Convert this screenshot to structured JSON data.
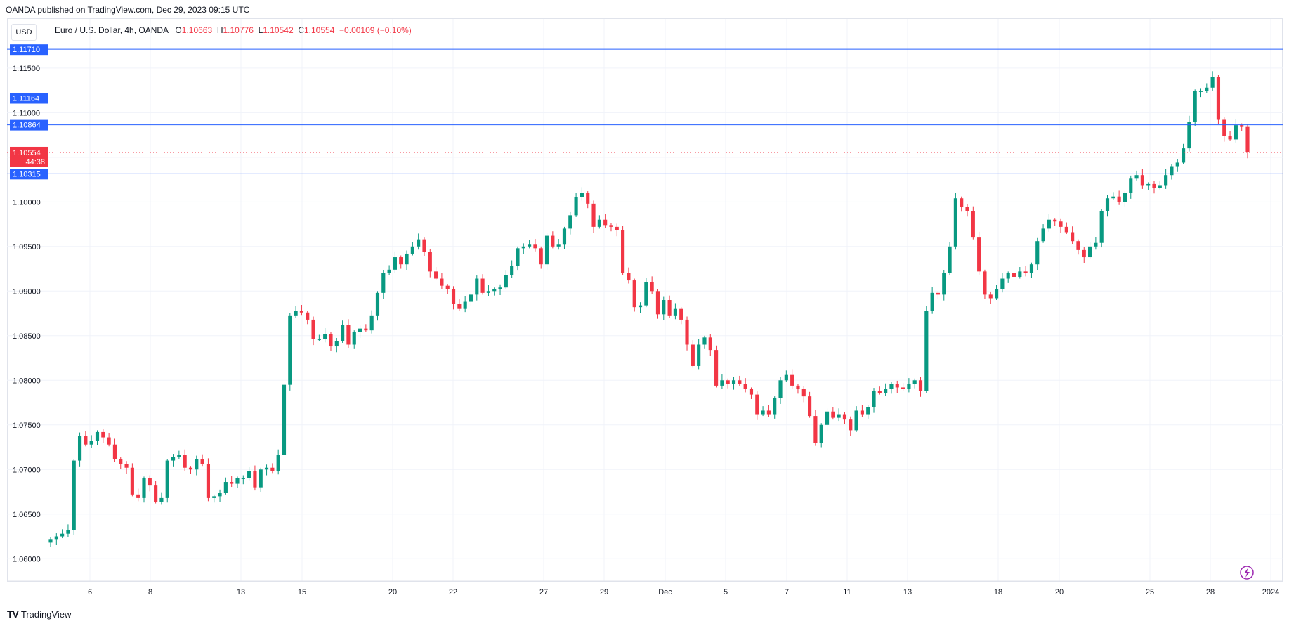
{
  "publisher": "OANDA published on TradingView.com, Dec 29, 2023 09:15 UTC",
  "currency_button": "USD",
  "legend": {
    "title": "Euro / U.S. Dollar, 4h, OANDA",
    "o_label": "O",
    "o": "1.10663",
    "h_label": "H",
    "h": "1.10776",
    "l_label": "L",
    "l": "1.10542",
    "c_label": "C",
    "c": "1.10554",
    "change": "−0.00109 (−0.10%)"
  },
  "footer": {
    "logo_text": "TV",
    "brand": "TradingView"
  },
  "colors": {
    "up": "#089981",
    "down": "#f23645",
    "level": "#2962ff",
    "grid": "#f0f3fa"
  },
  "chart_data": {
    "type": "candlestick",
    "symbol": "EURUSD",
    "timeframe": "4h",
    "ylim": [
      1.0575,
      1.1205
    ],
    "y_ticks": [
      "1.06000",
      "1.06500",
      "1.07000",
      "1.07500",
      "1.08000",
      "1.08500",
      "1.09000",
      "1.09500",
      "1.10000",
      "1.10500",
      "1.11000",
      "1.11500"
    ],
    "x_ticks": [
      "6",
      "8",
      "13",
      "15",
      "20",
      "22",
      "27",
      "29",
      "Dec",
      "5",
      "7",
      "11",
      "13",
      "18",
      "20",
      "25",
      "28",
      "2024"
    ],
    "horizontal_levels": [
      {
        "value": 1.1171,
        "label": "1.11710"
      },
      {
        "value": 1.11164,
        "label": "1.11164"
      },
      {
        "value": 1.10864,
        "label": "1.10864"
      },
      {
        "value": 1.10315,
        "label": "1.10315"
      }
    ],
    "last_price": {
      "value": 1.10554,
      "label": "1.10554",
      "countdown": "44:38"
    },
    "closes": [
      1.0622,
      1.0625,
      1.0628,
      1.0632,
      1.071,
      1.0738,
      1.0728,
      1.0732,
      1.0742,
      1.0736,
      1.0728,
      1.0712,
      1.0706,
      1.0702,
      1.0672,
      1.0668,
      1.069,
      1.0682,
      1.0664,
      1.0668,
      1.071,
      1.0714,
      1.0716,
      1.0702,
      1.07,
      1.0712,
      1.0706,
      1.0668,
      1.067,
      1.0674,
      1.0686,
      1.0684,
      1.069,
      1.069,
      1.0698,
      1.068,
      1.07,
      1.0702,
      1.0698,
      1.0716,
      1.0795,
      1.0872,
      1.0878,
      1.0876,
      1.0868,
      1.0846,
      1.0846,
      1.0852,
      1.0838,
      1.0844,
      1.0862,
      1.084,
      1.0854,
      1.0858,
      1.0856,
      1.0872,
      1.0898,
      1.092,
      1.0924,
      1.0938,
      1.093,
      1.0942,
      1.095,
      1.0958,
      1.0944,
      1.0922,
      1.0914,
      1.0906,
      1.0902,
      1.0886,
      1.088,
      1.0888,
      1.0896,
      1.0914,
      1.0898,
      1.09,
      1.0902,
      1.0904,
      1.0918,
      1.0928,
      1.0948,
      1.095,
      1.0952,
      1.0948,
      1.093,
      1.0962,
      1.095,
      1.0952,
      1.097,
      1.0985,
      1.1005,
      1.101,
      1.0998,
      1.0972,
      1.098,
      1.0974,
      1.0972,
      1.0968,
      1.092,
      1.0912,
      1.0882,
      1.0884,
      1.091,
      1.09,
      1.0874,
      1.089,
      1.0872,
      1.088,
      1.0868,
      1.084,
      1.0816,
      1.084,
      1.0848,
      1.0834,
      1.0794,
      1.08,
      1.0796,
      1.08,
      1.0796,
      1.079,
      1.0784,
      1.0762,
      1.0766,
      1.0762,
      1.078,
      1.08,
      1.0806,
      1.0794,
      1.079,
      1.0782,
      1.076,
      1.073,
      1.075,
      1.0765,
      1.0758,
      1.0762,
      1.0756,
      1.0744,
      1.0766,
      1.0762,
      1.077,
      1.0788,
      1.0786,
      1.079,
      1.0796,
      1.0792,
      1.079,
      1.0796,
      1.08,
      1.0788,
      1.0878,
      1.0898,
      1.0896,
      1.092,
      1.095,
      1.1004,
      1.0994,
      1.099,
      1.096,
      1.0922,
      1.0896,
      1.0892,
      1.0902,
      1.0914,
      1.092,
      1.0916,
      1.0922,
      1.092,
      1.093,
      1.0956,
      1.097,
      1.098,
      1.0978,
      1.0972,
      1.0966,
      1.0956,
      1.0946,
      1.0938,
      1.095,
      1.0954,
      1.099,
      1.1004,
      1.1006,
      1.1,
      1.101,
      1.1026,
      1.103,
      1.1018,
      1.102,
      1.1016,
      1.1018,
      1.103,
      1.104,
      1.1044,
      1.106,
      1.109,
      1.1124,
      1.1124,
      1.1128,
      1.114,
      1.1092,
      1.1074,
      1.107,
      1.1086,
      1.1084,
      1.10554
    ]
  }
}
